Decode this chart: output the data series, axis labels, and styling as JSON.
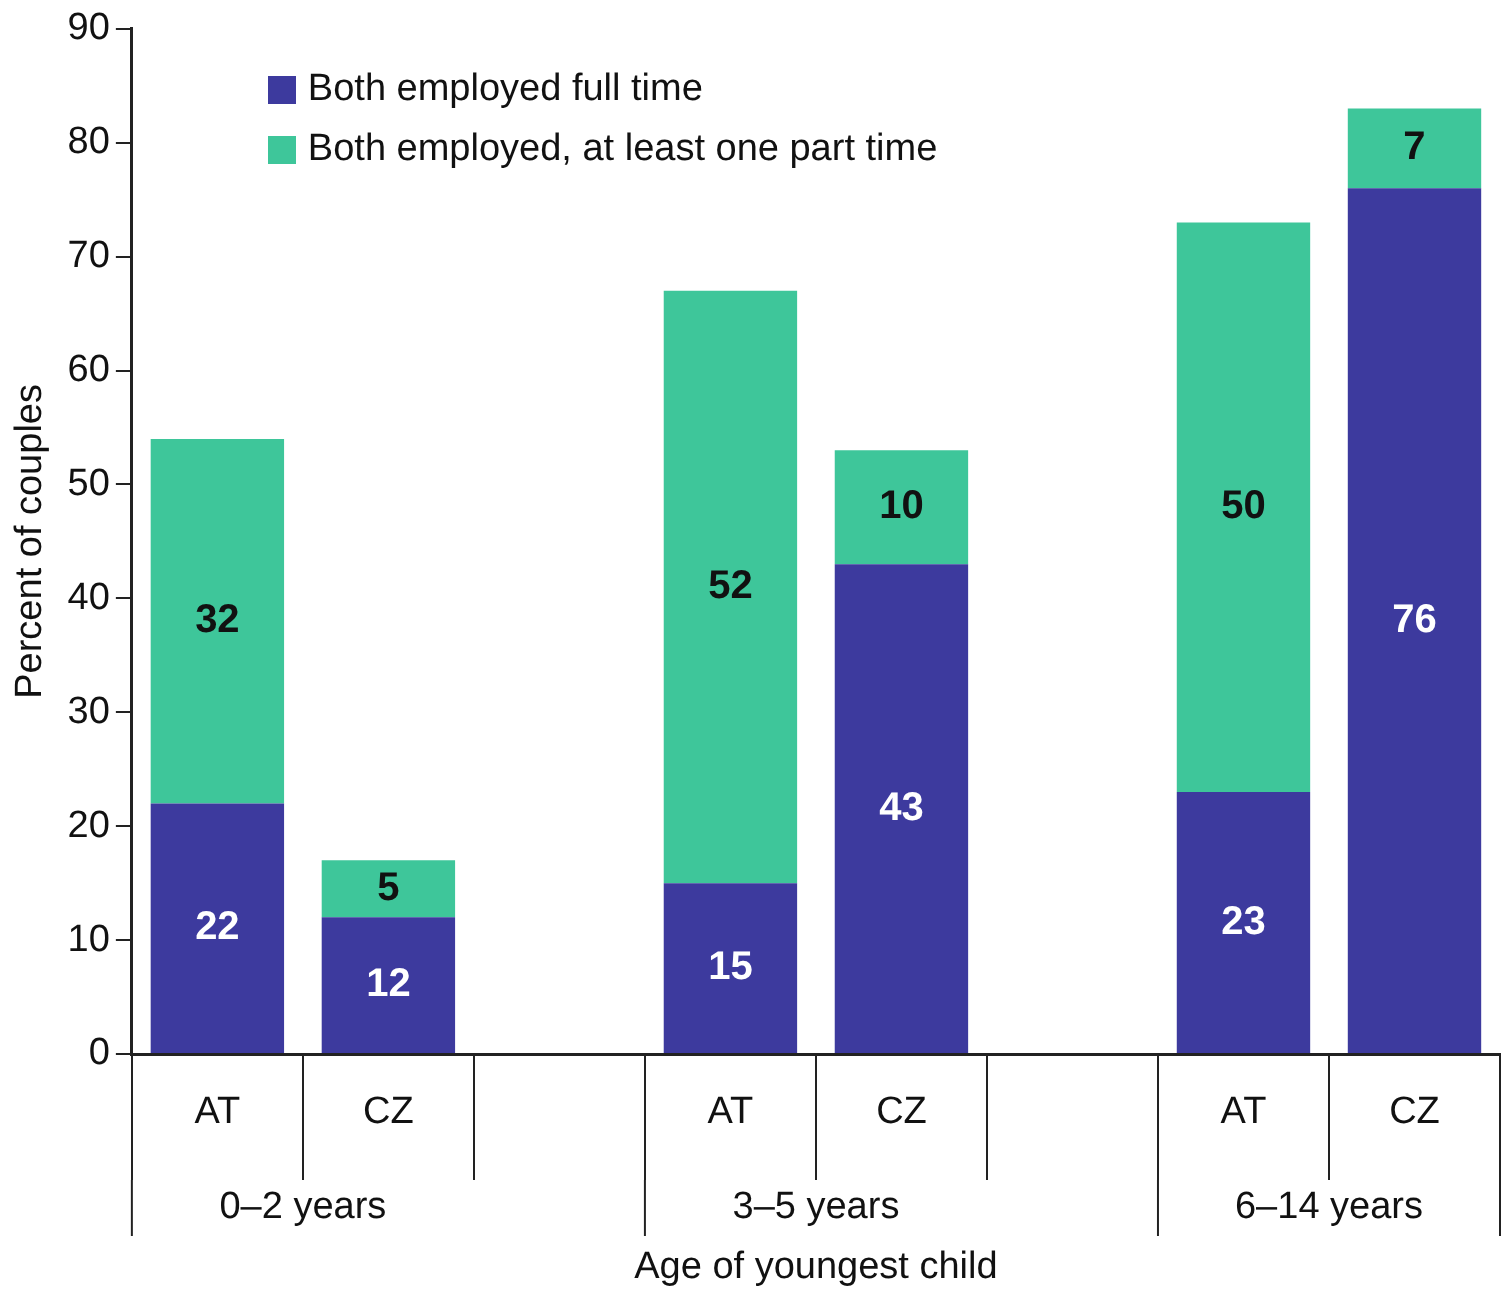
{
  "chart_data": {
    "type": "bar",
    "stacked": true,
    "categories": [
      "AT",
      "CZ",
      null,
      "AT",
      "CZ",
      null,
      "AT",
      "CZ"
    ],
    "series": [
      {
        "name": "Both employed full time",
        "color": "#3d3a9e",
        "values": [
          22,
          12,
          null,
          15,
          43,
          null,
          23,
          76
        ]
      },
      {
        "name": "Both employed, at least one part time",
        "color": "#3ec69a",
        "values": [
          32,
          5,
          null,
          52,
          10,
          null,
          50,
          7
        ]
      }
    ],
    "ylim": [
      0,
      90
    ],
    "yticks": [
      0,
      10,
      20,
      30,
      40,
      50,
      60,
      70,
      80,
      90
    ],
    "ylabel": "Percent of couples",
    "xlabel": "Age of youngest child",
    "annotations": [
      "0–2 years",
      "3–5 years",
      "6–14 years"
    ],
    "data_labels": true,
    "legend": "top left",
    "grid": false
  }
}
